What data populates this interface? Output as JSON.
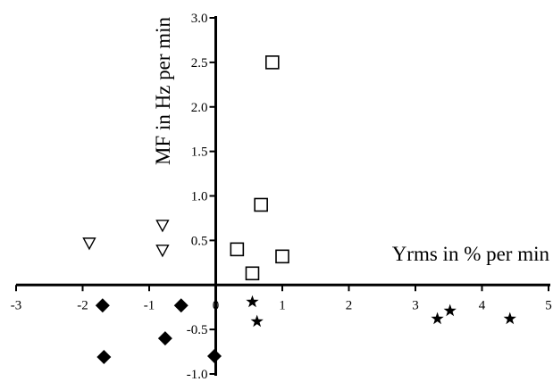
{
  "chart_data": {
    "type": "scatter",
    "title": "",
    "xlabel": "Yrms in % per min",
    "ylabel": "MF in Hz per min",
    "xlim": [
      -3,
      5
    ],
    "ylim": [
      -1.0,
      3.0
    ],
    "x_ticks": [
      "-3",
      "-2",
      "-1",
      "0",
      "1",
      "2",
      "3",
      "4",
      "5"
    ],
    "y_ticks": [
      "-1.0",
      "-0.5",
      "0.5",
      "1.0",
      "1.5",
      "2.0",
      "2.5",
      "3.0"
    ],
    "grid": false,
    "legend": "none",
    "series": [
      {
        "marker": "open-triangle-down",
        "points": [
          [
            -1.9,
            0.47
          ],
          [
            -0.8,
            0.67
          ],
          [
            -0.8,
            0.39
          ]
        ]
      },
      {
        "marker": "filled-diamond",
        "points": [
          [
            -1.7,
            -0.23
          ],
          [
            -0.52,
            -0.23
          ],
          [
            -0.76,
            -0.6
          ],
          [
            -1.68,
            -0.81
          ],
          [
            -0.02,
            -0.8
          ]
        ]
      },
      {
        "marker": "open-square",
        "points": [
          [
            0.85,
            2.5
          ],
          [
            0.68,
            0.9
          ],
          [
            0.32,
            0.4
          ],
          [
            1.0,
            0.32
          ],
          [
            0.55,
            0.13
          ]
        ]
      },
      {
        "marker": "filled-star",
        "points": [
          [
            0.55,
            -0.19
          ],
          [
            0.62,
            -0.41
          ],
          [
            3.33,
            -0.38
          ],
          [
            3.52,
            -0.29
          ],
          [
            4.42,
            -0.38
          ]
        ]
      }
    ],
    "colors": {
      "marker": "#000000",
      "axis": "#000000"
    }
  }
}
